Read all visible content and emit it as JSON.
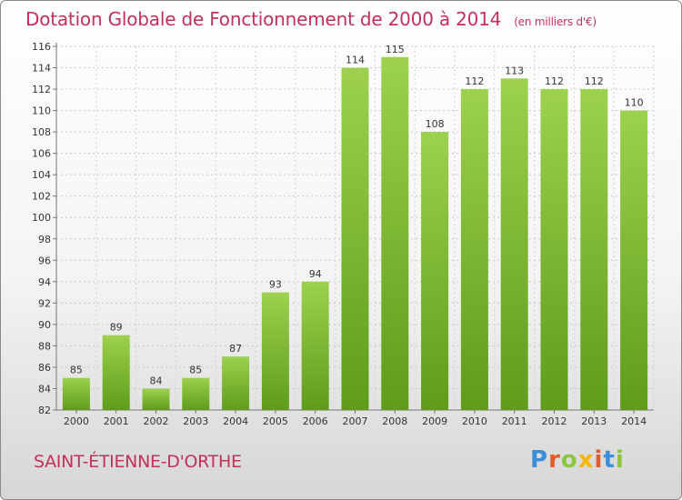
{
  "header": {
    "title": "Dotation Globale de Fonctionnement de 2000 à 2014",
    "subtitle": "(en milliers d'€)"
  },
  "footer": {
    "commune": "SAINT-ÉTIENNE-D'ORTHE",
    "logo_letters": [
      "P",
      "r",
      "o",
      "x",
      "i",
      "t",
      "i"
    ],
    "logo_colors": [
      "#3a8fd8",
      "#e25b2a",
      "#8cc63f",
      "#f2b705",
      "#e25b2a",
      "#3a8fd8",
      "#8cc63f"
    ]
  },
  "colors": {
    "accent": "#c4305a",
    "bar_light": "#9dd14e",
    "bar_dark": "#5e9c1a"
  },
  "chart_data": {
    "type": "bar",
    "categories": [
      "2000",
      "2001",
      "2002",
      "2003",
      "2004",
      "2005",
      "2006",
      "2007",
      "2008",
      "2009",
      "2010",
      "2011",
      "2012",
      "2013",
      "2014"
    ],
    "values": [
      85,
      89,
      84,
      85,
      87,
      93,
      94,
      114,
      115,
      108,
      112,
      113,
      112,
      112,
      110
    ],
    "title": "Dotation Globale de Fonctionnement de 2000 à 2014",
    "subtitle": "(en milliers d'€)",
    "ylim": [
      82,
      116
    ],
    "yticks": [
      82,
      84,
      86,
      88,
      90,
      92,
      94,
      96,
      98,
      100,
      102,
      104,
      106,
      108,
      110,
      112,
      114,
      116
    ],
    "grid": "horizontal-dotted",
    "data_labels": true
  }
}
